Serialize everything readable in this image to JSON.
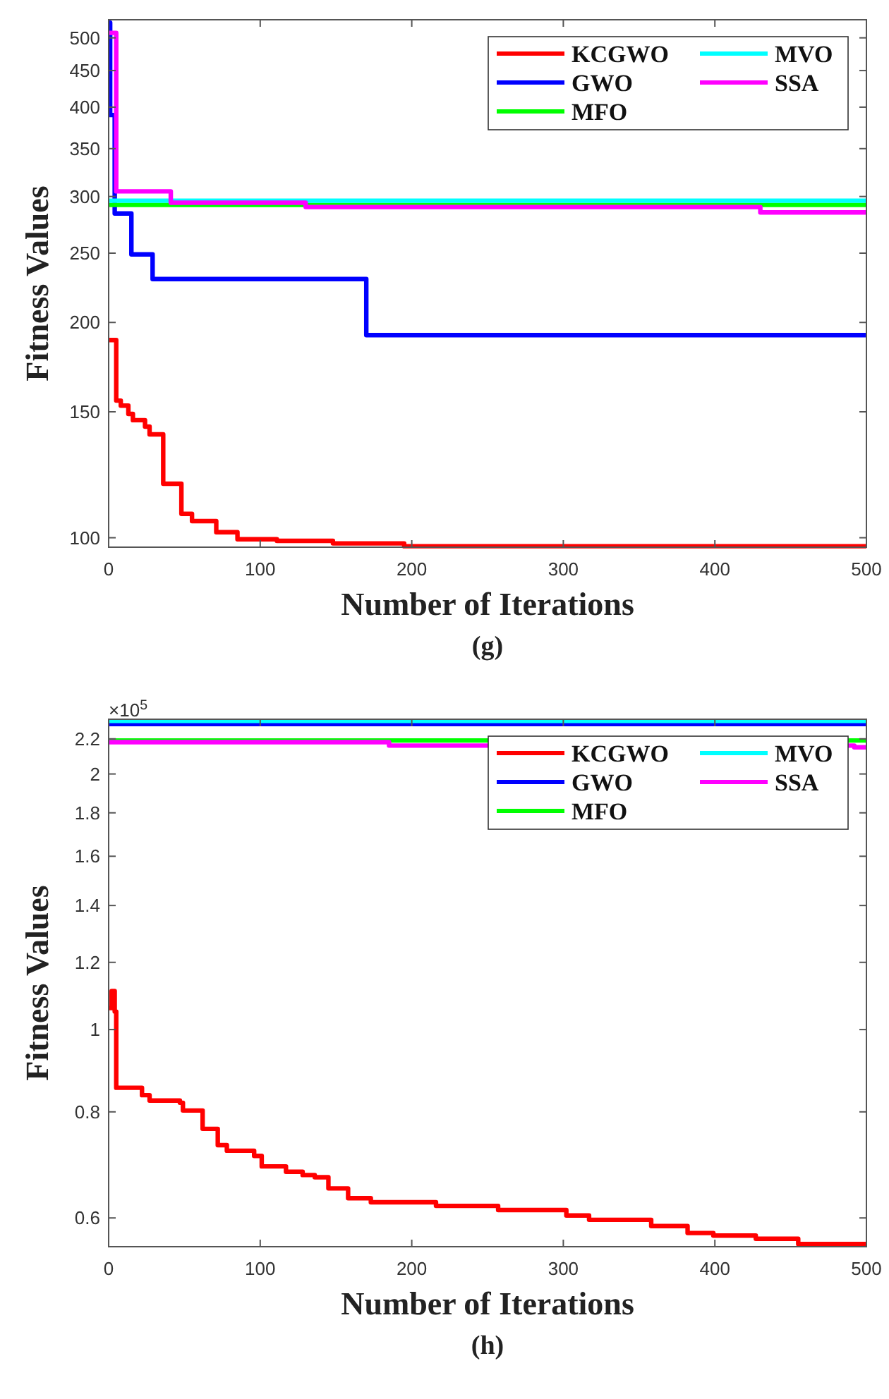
{
  "chart_data": [
    {
      "type": "step",
      "xlabel": "Number of Iterations",
      "ylabel": "Fitness Values",
      "annotations": [
        "(g)"
      ],
      "log": "y",
      "legend": "top right",
      "xlim": [
        0,
        500
      ],
      "xticks": [
        0,
        100,
        200,
        300,
        400,
        500
      ],
      "ylim": [
        97,
        530
      ],
      "yticks": [
        100,
        150,
        200,
        250,
        300,
        350,
        400,
        450,
        500
      ],
      "series": [
        {
          "name": "KCGWO",
          "color": "#ff0000",
          "x": [
            0,
            3,
            5,
            8,
            13,
            16,
            24,
            27,
            35,
            36,
            48,
            55,
            71,
            85,
            111,
            148,
            195,
            500
          ],
          "values": [
            189,
            189,
            155.5,
            153,
            149,
            146,
            143,
            139.5,
            139.5,
            119,
            108,
            105.5,
            101.8,
            99.5,
            99,
            98.2,
            97.3,
            97.3
          ]
        },
        {
          "name": "GWO",
          "color": "#0000ff",
          "x": [
            0,
            1,
            4,
            15,
            29,
            170,
            500
          ],
          "values": [
            525,
            390,
            284,
            249,
            230,
            192,
            192
          ]
        },
        {
          "name": "MFO",
          "color": "#00ff00",
          "x": [
            0,
            500
          ],
          "values": [
            292,
            292
          ]
        },
        {
          "name": "MVO",
          "color": "#00ffff",
          "x": [
            0,
            500
          ],
          "values": [
            296,
            296
          ]
        },
        {
          "name": "SSA",
          "color": "#ff00ff",
          "x": [
            0,
            5,
            41,
            130,
            430,
            500
          ],
          "values": [
            508,
            305,
            294,
            290,
            285,
            285
          ]
        }
      ]
    },
    {
      "type": "step",
      "xlabel": "Number of Iterations",
      "ylabel": "Fitness Values",
      "annotations": [
        "×10$^{5}$",
        "(h)"
      ],
      "log": "y",
      "legend": "top right",
      "xlim": [
        0,
        500
      ],
      "xticks": [
        0,
        100,
        200,
        300,
        400,
        500
      ],
      "ylim": [
        0.555,
        2.32
      ],
      "yticks": [
        0.6,
        0.8,
        1,
        1.2,
        1.4,
        1.6,
        1.8,
        2,
        2.2
      ],
      "series": [
        {
          "name": "KCGWO",
          "color": "#ff0000",
          "x": [
            0,
            2,
            4,
            5,
            22,
            27,
            47,
            49,
            62,
            72,
            78,
            96,
            101,
            117,
            128,
            136,
            145,
            158,
            173,
            216,
            257,
            302,
            317,
            358,
            382,
            399,
            427,
            455,
            500
          ],
          "values": [
            1.06,
            1.11,
            1.05,
            0.854,
            0.837,
            0.825,
            0.82,
            0.803,
            0.764,
            0.731,
            0.72,
            0.71,
            0.69,
            0.68,
            0.674,
            0.67,
            0.65,
            0.633,
            0.626,
            0.62,
            0.613,
            0.604,
            0.597,
            0.587,
            0.576,
            0.572,
            0.567,
            0.559,
            0.559
          ]
        },
        {
          "name": "GWO",
          "color": "#0000ff",
          "x": [
            0,
            500
          ],
          "values": [
            2.29,
            2.29
          ]
        },
        {
          "name": "MFO",
          "color": "#00ff00",
          "x": [
            0,
            500
          ],
          "values": [
            2.19,
            2.19
          ]
        },
        {
          "name": "MVO",
          "color": "#00ffff",
          "x": [
            0,
            500
          ],
          "values": [
            2.31,
            2.31
          ]
        },
        {
          "name": "SSA",
          "color": "#ff00ff",
          "x": [
            0,
            185,
            492,
            500
          ],
          "values": [
            2.18,
            2.16,
            2.15,
            2.15
          ]
        }
      ]
    }
  ]
}
